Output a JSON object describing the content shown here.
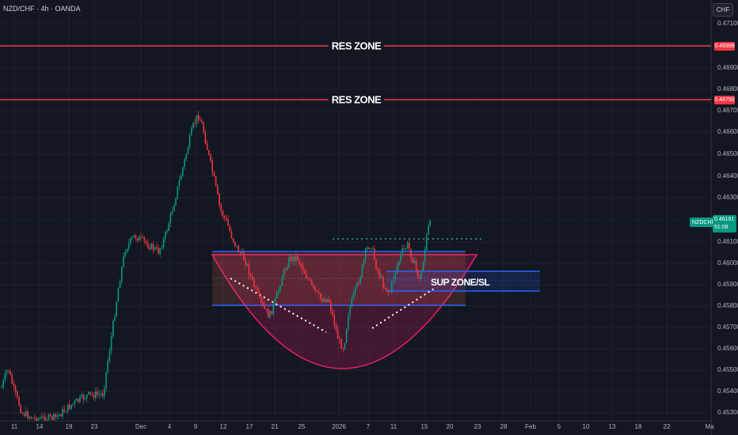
{
  "header": {
    "symbol_title": "NZD/CHF · 4h · OANDA",
    "currency": "CHF"
  },
  "price_axis": {
    "ticks": [
      "0.47100",
      "0.46900",
      "0.46800",
      "0.46700",
      "0.46600",
      "0.46500",
      "0.46400",
      "0.46300",
      "0.46100",
      "0.46000",
      "0.45900",
      "0.45800",
      "0.45700",
      "0.45600",
      "0.45500",
      "0.45400",
      "0.45300"
    ],
    "res_tag_1": "0.46999",
    "res_tag_2": "0.46750",
    "current_symbol": "NZDCHF",
    "current_price": "0.46191",
    "countdown": "51:08"
  },
  "time_axis": {
    "ticks": [
      "11",
      "14",
      "19",
      "23",
      "Dec",
      "4",
      "9",
      "12",
      "17",
      "21",
      "25",
      "2026",
      "7",
      "11",
      "15",
      "20",
      "23",
      "28",
      "Feb",
      "5",
      "10",
      "13",
      "18",
      "22",
      "Ma"
    ]
  },
  "annotations": {
    "res_zone_1": "RES ZONE",
    "res_zone_2": "RES ZONE",
    "sup_zone": "SUP ZONE/SL"
  },
  "colors": {
    "background": "#131722",
    "bull": "#089981",
    "bear": "#f23645",
    "res_line": "#f23645",
    "zone_line": "#2962ff",
    "bowl": "#e91e63"
  }
}
